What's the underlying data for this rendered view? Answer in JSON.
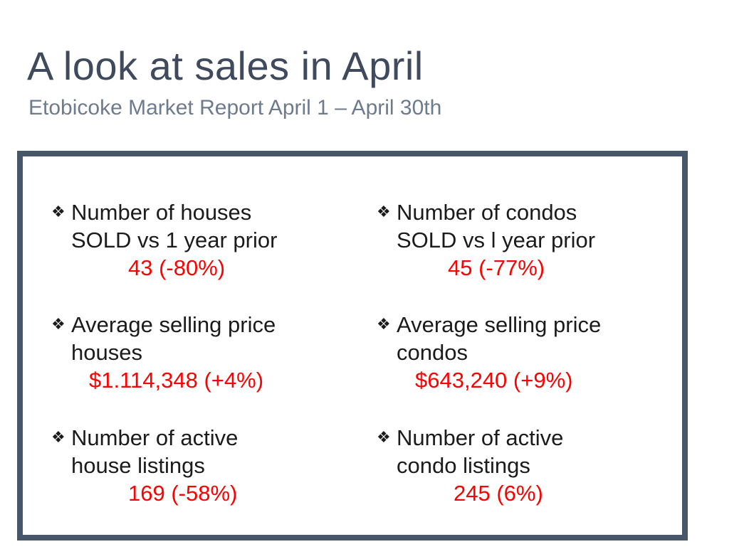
{
  "slide": {
    "title": "A look at sales in April",
    "subtitle": "Etobicoke Market Report April 1 – April 30th"
  },
  "stats": {
    "bullet_icon": "four-diamond-bullet",
    "houses_sold": {
      "label_line1": "Number of houses",
      "label_line2": "SOLD vs 1 year prior",
      "value": "43 (-80%)"
    },
    "condos_sold": {
      "label_line1": "Number of condos",
      "label_line2": "SOLD vs l year prior",
      "value": "45 (-77%)"
    },
    "houses_avg_price": {
      "label_line1": "Average selling price",
      "label_line2": "houses",
      "value": "$1.114,348 (+4%)"
    },
    "condos_avg_price": {
      "label_line1": "Average selling price",
      "label_line2": "condos",
      "value": "$643,240 (+9%)"
    },
    "houses_active": {
      "label_line1": "Number of active",
      "label_line2": "house listings",
      "value": "169 (-58%)"
    },
    "condos_active": {
      "label_line1": "Number of active",
      "label_line2": "condo listings",
      "value": "245 (6%)"
    }
  },
  "colors": {
    "title": "#3f4a5c",
    "subtitle": "#6d7b8c",
    "panel_border": "#48566a",
    "value_text": "#ff0000"
  }
}
